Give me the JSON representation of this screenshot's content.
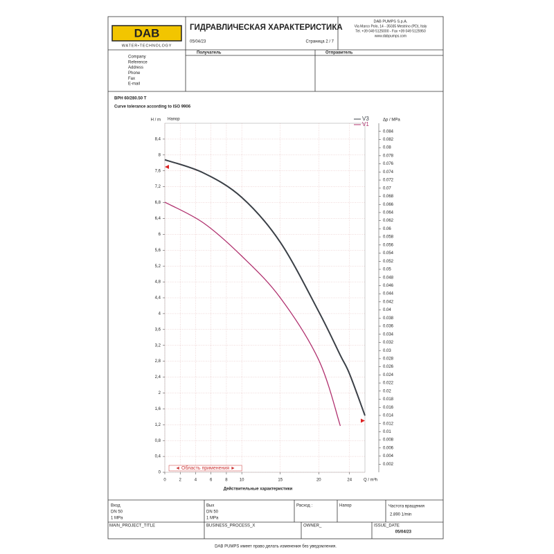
{
  "header": {
    "logo": "DAB",
    "logo_tagline": "WATER•TECHNOLOGY",
    "title": "ГИДРАВЛИЧЕСКАЯ ХАРАКТЕРИСТИКА",
    "date": "05/04/23",
    "page": "Страница 2 / 7",
    "company": "DAB PUMPS S.p.A.",
    "address": "Via Marco Polo, 14 - 35035 Mestrino (PD), Italy",
    "phone": "Tel. +39 049 5125000 - Fax +39 049 5125950",
    "web": "www.dabpumps.com"
  },
  "recipient": "Получатель",
  "sender": "Отправитель",
  "contact_fields": [
    "Company",
    "Reference",
    "Address",
    "Phone",
    "Fax",
    "E-mail"
  ],
  "product": "BPH 60/280.50 T",
  "tolerance": "Curve tolerance according to ISO 9906",
  "chart_data": {
    "type": "line",
    "series_title": "Напор",
    "y_label": "H / m",
    "y2_label": "Δp / MPa",
    "x_label": "Q / m³h",
    "caption": "Действительные характеристики",
    "range_label": "◄ Область применения ►",
    "range": [
      0,
      10
    ],
    "x": [
      0,
      5,
      10,
      15,
      20,
      22.8,
      24,
      26
    ],
    "series": [
      {
        "name": "V3",
        "color": "#3a3f46",
        "values": [
          7.88,
          7.55,
          6.93,
          5.8,
          4.05,
          2.95,
          2.48,
          1.43
        ]
      },
      {
        "name": "V1",
        "color": "#b0306e",
        "values": [
          6.81,
          6.29,
          5.45,
          4.4,
          2.83,
          1.17,
          null,
          null
        ]
      }
    ],
    "tolerance_markers": [
      {
        "x": 0,
        "y": 7.7
      },
      {
        "x": 26,
        "y": 1.3
      }
    ],
    "xlim": [
      0,
      26
    ],
    "xticks": [
      0,
      2,
      4,
      6,
      8,
      10,
      15,
      20,
      24
    ],
    "ylim": [
      0,
      8.8
    ],
    "yticks": [
      0,
      {
        "value": 0.4,
        "label": "0,4"
      },
      {
        "value": 0.8,
        "label": "0,8"
      },
      {
        "value": 1.2,
        "label": "1,2"
      },
      {
        "value": 1.6,
        "label": "1,6"
      },
      2,
      {
        "value": 2.4,
        "label": "2,4"
      },
      {
        "value": 2.8,
        "label": "2,8"
      },
      {
        "value": 3.2,
        "label": "3,2"
      },
      {
        "value": 3.6,
        "label": "3,6"
      },
      4,
      {
        "value": 4.4,
        "label": "4,4"
      },
      {
        "value": 4.8,
        "label": "4,8"
      },
      {
        "value": 5.2,
        "label": "5,2"
      },
      {
        "value": 5.6,
        "label": "5,6"
      },
      6,
      {
        "value": 6.4,
        "label": "6,4"
      },
      {
        "value": 6.8,
        "label": "6,8"
      },
      {
        "value": 7.2,
        "label": "7,2"
      },
      {
        "value": 7.6,
        "label": "7,6"
      },
      8,
      {
        "value": 8.4,
        "label": "8,4"
      }
    ],
    "y2lim": [
      0,
      0.086
    ],
    "y2ticks": [
      0.002,
      0.004,
      0.006,
      0.008,
      0.01,
      0.012,
      0.014,
      0.016,
      0.018,
      0.02,
      0.022,
      0.024,
      0.026,
      0.028,
      0.03,
      0.032,
      0.034,
      0.036,
      0.038,
      0.04,
      0.042,
      0.044,
      0.046,
      0.048,
      0.05,
      0.052,
      0.054,
      0.056,
      0.058,
      0.06,
      0.062,
      0.064,
      0.066,
      0.068,
      0.07,
      0.072,
      0.074,
      0.076,
      0.078,
      0.08,
      0.082,
      0.084
    ],
    "grid": true,
    "legend": "upper right"
  },
  "specs": {
    "inlet": {
      "label": "Вход",
      "dn": "DN 50",
      "pressure": "1 MPa"
    },
    "outlet": {
      "label": "Вых",
      "dn": "DN 50",
      "pressure": "1 MPa"
    },
    "flow": "Расход :",
    "head": "Напор",
    "speed": {
      "label": "Частота вращения",
      "value": "2.890 1/min"
    }
  },
  "project_row": {
    "title": "MAIN_PROJECT_TITLE",
    "process": "BUSINESS_PROCESS_X",
    "owner": "OWNER_",
    "issue_label": "ISSUE_DATE",
    "issue_date": "05/04/23"
  },
  "footer_note": "DAB PUMPS имеет право делать изменения без уведомления."
}
